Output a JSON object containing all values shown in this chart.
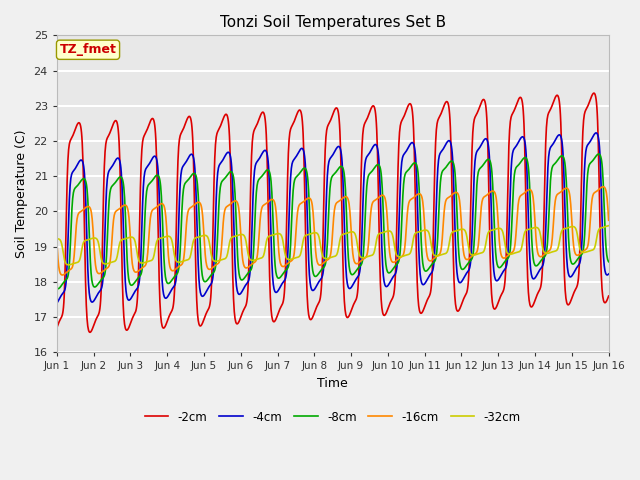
{
  "title": "Tonzi Soil Temperatures Set B",
  "xlabel": "Time",
  "ylabel": "Soil Temperature (C)",
  "ylim": [
    16.0,
    25.0
  ],
  "yticks": [
    16.0,
    17.0,
    18.0,
    19.0,
    20.0,
    21.0,
    22.0,
    23.0,
    24.0,
    25.0
  ],
  "xtick_labels": [
    "Jun 1",
    "Jun 2",
    "Jun 3",
    "Jun 4",
    "Jun 5",
    "Jun 6",
    "Jun 7",
    "Jun 8",
    "Jun 9",
    "Jun 10",
    "Jun 11",
    "Jun 12",
    "Jun 13",
    "Jun 14",
    "Jun 15",
    "Jun 16"
  ],
  "series_colors": [
    "#dd0000",
    "#0000cc",
    "#00aa00",
    "#ff8800",
    "#cccc00"
  ],
  "series_labels": [
    "-2cm",
    "-4cm",
    "-8cm",
    "-16cm",
    "-32cm"
  ],
  "annotation_text": "TZ_fmet",
  "line_width": 1.2,
  "n_points": 1500,
  "base_temp": [
    19.5,
    19.4,
    19.35,
    19.15,
    18.85
  ],
  "amplitude": [
    2.8,
    1.9,
    1.45,
    0.9,
    0.35
  ],
  "phase_shift_days": [
    0.0,
    0.06,
    0.13,
    0.25,
    0.42
  ],
  "trend_per_day": [
    0.06,
    0.055,
    0.05,
    0.04,
    0.025
  ],
  "asymmetry": 3.0
}
